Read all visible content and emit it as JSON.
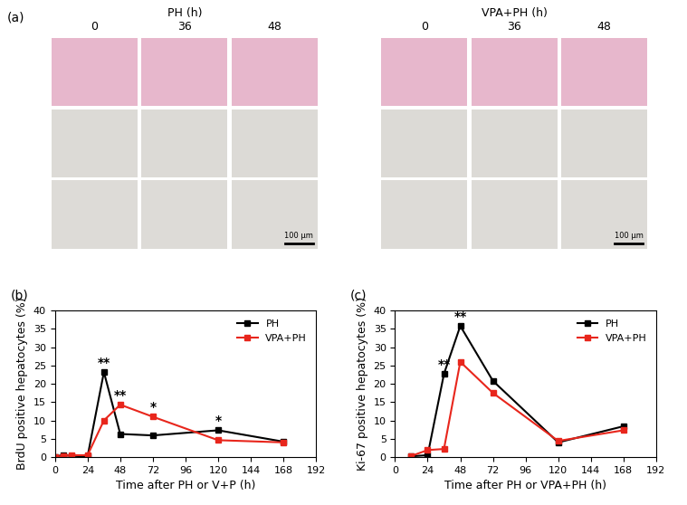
{
  "panel_a": {
    "label": "(a)",
    "groups": [
      {
        "title": "PH (h)",
        "columns": [
          "0",
          "36",
          "48"
        ],
        "scale_bar": "100 µm"
      },
      {
        "title": "VPA+PH (h)",
        "columns": [
          "0",
          "36",
          "48"
        ],
        "scale_bar": "100 µm"
      }
    ]
  },
  "chart_data": [
    {
      "type": "line",
      "panel": "(b)",
      "x_label": "Time after PH or V+P (h)",
      "y_label": "BrdU positive hepatocytes (%)",
      "xlim": [
        0,
        192
      ],
      "xticks": [
        0,
        24,
        48,
        72,
        96,
        120,
        144,
        168,
        192
      ],
      "ylim": [
        0,
        40
      ],
      "yticks": [
        0,
        5,
        10,
        15,
        20,
        25,
        30,
        35,
        40
      ],
      "legend": "upper right",
      "marker": "square",
      "series": [
        {
          "name": "PH",
          "color": "#000000",
          "x": [
            0,
            6,
            12,
            24,
            36,
            48,
            72,
            120,
            168
          ],
          "values": [
            0,
            0.6,
            0.3,
            0.2,
            23.2,
            6.3,
            5.9,
            7.3,
            4.2
          ]
        },
        {
          "name": "VPA+PH",
          "color": "#e8261c",
          "x": [
            0,
            6,
            12,
            24,
            36,
            48,
            72,
            120,
            168
          ],
          "values": [
            0,
            0.3,
            0.5,
            0.5,
            10.0,
            14.3,
            11.0,
            4.6,
            4.0
          ]
        }
      ],
      "annotations": [
        {
          "x": 36,
          "text": "**"
        },
        {
          "x": 48,
          "text": "**"
        },
        {
          "x": 72,
          "text": "*"
        },
        {
          "x": 120,
          "text": "*"
        }
      ]
    },
    {
      "type": "line",
      "panel": "(c)",
      "x_label": "Time after PH or VPA+PH (h)",
      "y_label": "Ki-67 positive hepatocytes (%)",
      "xlim": [
        0,
        192
      ],
      "xticks": [
        0,
        24,
        48,
        72,
        96,
        120,
        144,
        168,
        192
      ],
      "ylim": [
        0,
        40
      ],
      "yticks": [
        0,
        5,
        10,
        15,
        20,
        25,
        30,
        35,
        40
      ],
      "legend": "upper right",
      "marker": "square",
      "series": [
        {
          "name": "PH",
          "color": "#000000",
          "x": [
            12,
            24,
            36,
            48,
            72,
            120,
            168
          ],
          "values": [
            0.2,
            0.5,
            22.7,
            35.8,
            20.8,
            4.0,
            8.4
          ]
        },
        {
          "name": "VPA+PH",
          "color": "#e8261c",
          "x": [
            12,
            24,
            36,
            48,
            72,
            120,
            168
          ],
          "values": [
            0.3,
            1.9,
            2.2,
            26.0,
            17.5,
            4.4,
            7.3
          ]
        }
      ],
      "annotations": [
        {
          "x": 36,
          "text": "**"
        },
        {
          "x": 48,
          "text": "**"
        }
      ]
    }
  ]
}
